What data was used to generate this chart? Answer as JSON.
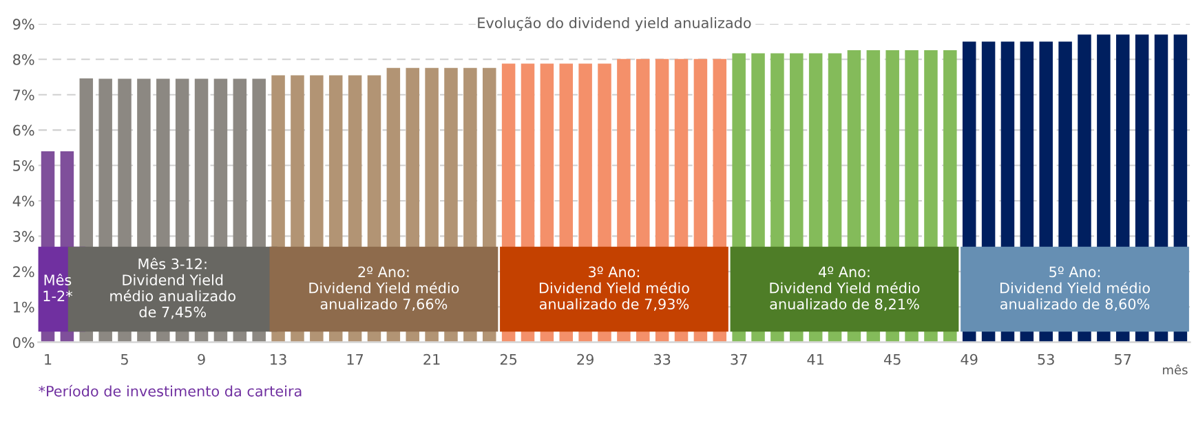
{
  "chart_data": {
    "type": "bar",
    "title": "Evolução do dividend yield anualizado",
    "x": [
      1,
      2,
      3,
      4,
      5,
      6,
      7,
      8,
      9,
      10,
      11,
      12,
      13,
      14,
      15,
      16,
      17,
      18,
      19,
      20,
      21,
      22,
      23,
      24,
      25,
      26,
      27,
      28,
      29,
      30,
      31,
      32,
      33,
      34,
      35,
      36,
      37,
      38,
      39,
      40,
      41,
      42,
      43,
      44,
      45,
      46,
      47,
      48,
      49,
      50,
      51,
      52,
      53,
      54,
      55,
      56,
      57,
      58,
      59,
      60
    ],
    "values": [
      5.4,
      5.4,
      7.46,
      7.45,
      7.45,
      7.45,
      7.45,
      7.45,
      7.45,
      7.45,
      7.45,
      7.45,
      7.55,
      7.55,
      7.55,
      7.55,
      7.55,
      7.55,
      7.76,
      7.76,
      7.76,
      7.76,
      7.76,
      7.76,
      7.88,
      7.88,
      7.88,
      7.88,
      7.88,
      7.88,
      8.01,
      8.01,
      8.01,
      8.01,
      8.01,
      8.01,
      8.17,
      8.17,
      8.17,
      8.17,
      8.17,
      8.17,
      8.26,
      8.26,
      8.26,
      8.26,
      8.26,
      8.26,
      8.5,
      8.5,
      8.5,
      8.5,
      8.5,
      8.5,
      8.7,
      8.7,
      8.7,
      8.7,
      8.7,
      8.7
    ],
    "colors": [
      "#7f4f9b",
      "#7f4f9b",
      "#8c8882",
      "#8c8882",
      "#8c8882",
      "#8c8882",
      "#8c8882",
      "#8c8882",
      "#8c8882",
      "#8c8882",
      "#8c8882",
      "#8c8882",
      "#b29474",
      "#b29474",
      "#b29474",
      "#b29474",
      "#b29474",
      "#b29474",
      "#b29474",
      "#b29474",
      "#b29474",
      "#b29474",
      "#b29474",
      "#b29474",
      "#f4906a",
      "#f4906a",
      "#f4906a",
      "#f4906a",
      "#f4906a",
      "#f4906a",
      "#f4906a",
      "#f4906a",
      "#f4906a",
      "#f4906a",
      "#f4906a",
      "#f4906a",
      "#84bb5a",
      "#84bb5a",
      "#84bb5a",
      "#84bb5a",
      "#84bb5a",
      "#84bb5a",
      "#84bb5a",
      "#84bb5a",
      "#84bb5a",
      "#84bb5a",
      "#84bb5a",
      "#84bb5a",
      "#001f5f",
      "#001f5f",
      "#001f5f",
      "#001f5f",
      "#001f5f",
      "#001f5f",
      "#001f5f",
      "#001f5f",
      "#001f5f",
      "#001f5f",
      "#001f5f",
      "#001f5f"
    ],
    "xlim": [
      0.5,
      60.5
    ],
    "xticks": [
      1,
      5,
      9,
      13,
      17,
      21,
      25,
      29,
      33,
      37,
      41,
      45,
      49,
      53,
      57
    ],
    "ylim": [
      0,
      9
    ],
    "yticks": [
      {
        "value": 0,
        "label": "0%"
      },
      {
        "value": 1,
        "label": "1%"
      },
      {
        "value": 2,
        "label": "2%"
      },
      {
        "value": 3,
        "label": "3%"
      },
      {
        "value": 4,
        "label": "4%"
      },
      {
        "value": 5,
        "label": "5%"
      },
      {
        "value": 6,
        "label": "6%"
      },
      {
        "value": 7,
        "label": "7%"
      },
      {
        "value": 8,
        "label": "8%"
      },
      {
        "value": 9,
        "label": "9%"
      }
    ],
    "grid": "y",
    "annotations": [
      {
        "text": "Mês\n1-2*",
        "x": 1.5,
        "y": 1.5
      },
      {
        "text": "Mês 3-12:\nDividend Yield\nmédio anualizado\nde 7,45%",
        "x": 7.5,
        "y": 1.5
      },
      {
        "text": "2º Ano:\nDividend Yield médio\nanualizado 7,66%",
        "x": 18.5,
        "y": 1.5
      },
      {
        "text": "3º Ano:\nDividend Yield médio\nanualizado de 7,93%",
        "x": 30.5,
        "y": 1.5
      },
      {
        "text": "4º Ano:\nDividend Yield médio\nanualizado de 8,21%",
        "x": 42.5,
        "y": 1.5
      },
      {
        "text": "5º Ano:\nDividend Yield médio\nanualizado de 8,60%",
        "x": 54.5,
        "y": 1.5
      },
      "mês",
      "*Período de investimento da carteira"
    ]
  }
}
